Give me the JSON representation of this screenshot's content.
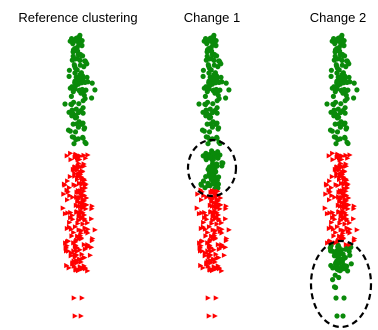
{
  "panels": [
    {
      "title": "Reference clustering"
    },
    {
      "title": "Change 1"
    },
    {
      "title": "Change 2"
    }
  ],
  "colors": {
    "green_cluster": "#0a8a0a",
    "red_cluster": "#ff0000",
    "highlight_circle": "#000000"
  },
  "markers": {
    "green_cluster": "circle",
    "red_cluster": "right-pointing triangle"
  }
}
